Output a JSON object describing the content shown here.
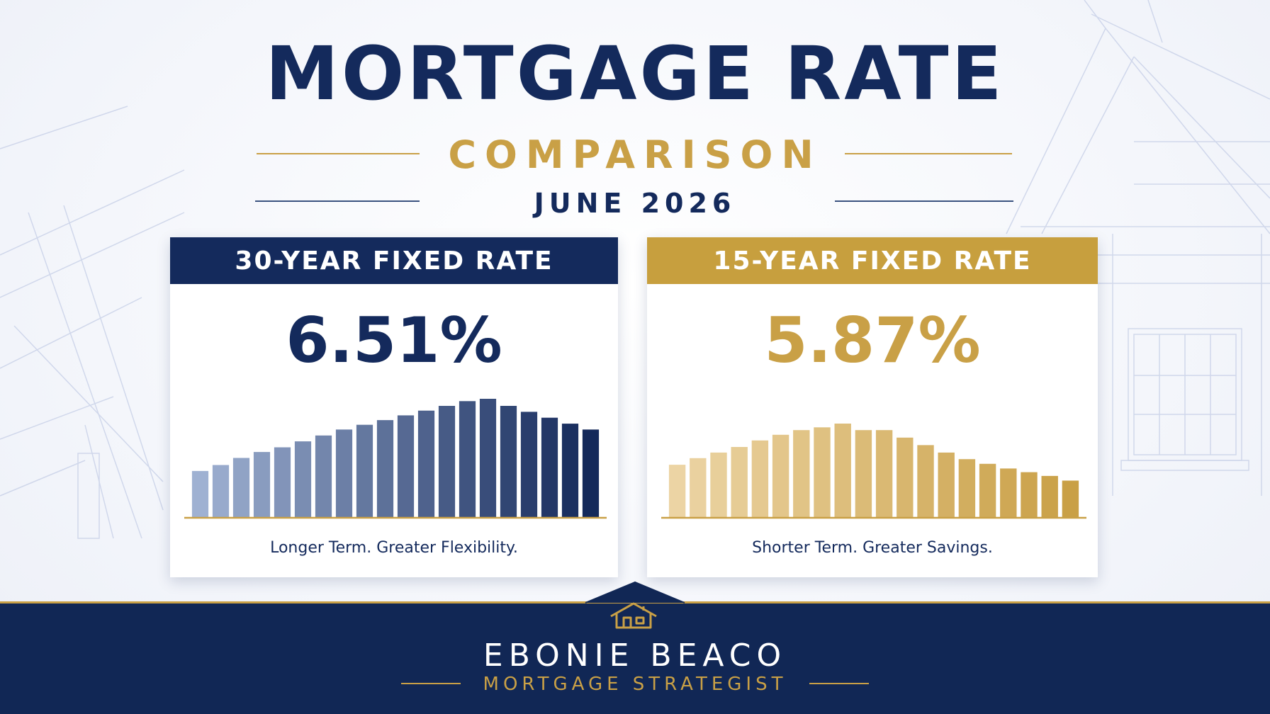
{
  "header": {
    "title": "MORTGAGE RATE",
    "subtitle": "COMPARISON",
    "date": "JUNE 2026"
  },
  "cards": [
    {
      "label": "30-YEAR FIXED RATE",
      "rate": "6.51%",
      "tagline": "Longer Term. Greater Flexibility.",
      "header_color": "#142a5c",
      "bars": [
        0.39,
        0.44,
        0.5,
        0.55,
        0.59,
        0.64,
        0.69,
        0.74,
        0.78,
        0.82,
        0.86,
        0.9,
        0.94,
        0.98,
        1.0,
        0.94,
        0.89,
        0.84,
        0.79,
        0.74
      ],
      "bar_color_start": "#9fb1d2",
      "bar_color_end": "#14295a"
    },
    {
      "label": "15-YEAR FIXED RATE",
      "rate": "5.87%",
      "tagline": "Shorter Term. Greater Savings.",
      "header_color": "#c79f3e",
      "bars": [
        0.56,
        0.63,
        0.69,
        0.75,
        0.82,
        0.88,
        0.93,
        0.96,
        1.0,
        0.93,
        0.93,
        0.85,
        0.77,
        0.69,
        0.62,
        0.57,
        0.52,
        0.48,
        0.44,
        0.39
      ],
      "bar_color_start": "#ecd4a4",
      "bar_color_end": "#c9a046"
    }
  ],
  "footer": {
    "name": "EBONIE BEACO",
    "role": "MORTGAGE STRATEGIST",
    "icon": "house-icon"
  },
  "colors": {
    "navy": "#142a5c",
    "gold": "#c9a046"
  }
}
